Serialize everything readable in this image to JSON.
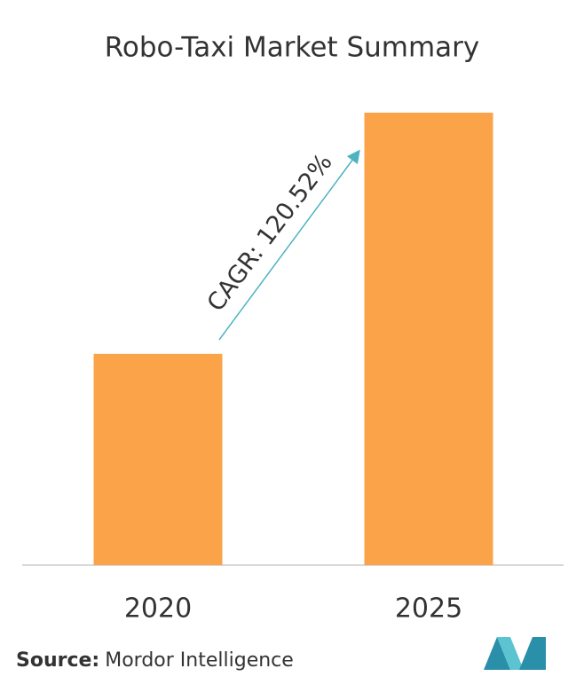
{
  "chart_data": {
    "type": "bar",
    "title": "Robo-Taxi Market Summary",
    "categories": [
      "2020",
      "2025"
    ],
    "values": [
      46.7,
      100
    ],
    "color": "#fba349",
    "ylim": [
      0,
      100
    ],
    "annotation": "CAGR: 120.52%",
    "source_label": "Source:",
    "source": "Mordor Intelligence"
  }
}
